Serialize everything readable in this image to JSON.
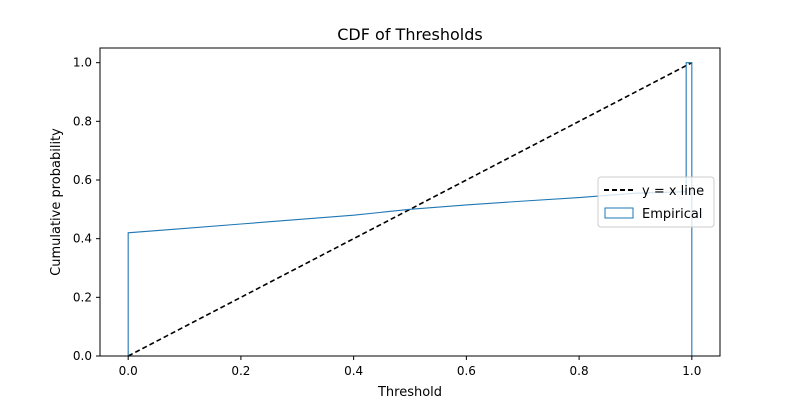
{
  "chart_data": {
    "type": "line",
    "title": "CDF of Thresholds",
    "xlabel": "Threshold",
    "ylabel": "Cumulative probability",
    "xlim": [
      -0.05,
      1.05
    ],
    "ylim": [
      0.0,
      1.05
    ],
    "xticks": [
      0.0,
      0.2,
      0.4,
      0.6,
      0.8,
      1.0
    ],
    "xtick_labels": [
      "0.0",
      "0.2",
      "0.4",
      "0.6",
      "0.8",
      "1.0"
    ],
    "yticks": [
      0.0,
      0.2,
      0.4,
      0.6,
      0.8,
      1.0
    ],
    "ytick_labels": [
      "0.0",
      "0.2",
      "0.4",
      "0.6",
      "0.8",
      "1.0"
    ],
    "legend_position": "right",
    "grid": false,
    "series": [
      {
        "name": "y = x line",
        "style": "dashed",
        "color": "#000000",
        "x": [
          0.0,
          1.0
        ],
        "y": [
          0.0,
          1.0
        ]
      },
      {
        "name": "Empirical",
        "style": "step",
        "color": "#1f77b4",
        "x": [
          0.0,
          0.0,
          0.1,
          0.2,
          0.3,
          0.4,
          0.5,
          0.6,
          0.7,
          0.8,
          0.9,
          0.99,
          0.99,
          1.0,
          1.0
        ],
        "y": [
          0.0,
          0.42,
          0.435,
          0.45,
          0.465,
          0.48,
          0.5,
          0.515,
          0.528,
          0.54,
          0.555,
          0.56,
          1.0,
          1.0,
          0.0
        ]
      }
    ]
  }
}
